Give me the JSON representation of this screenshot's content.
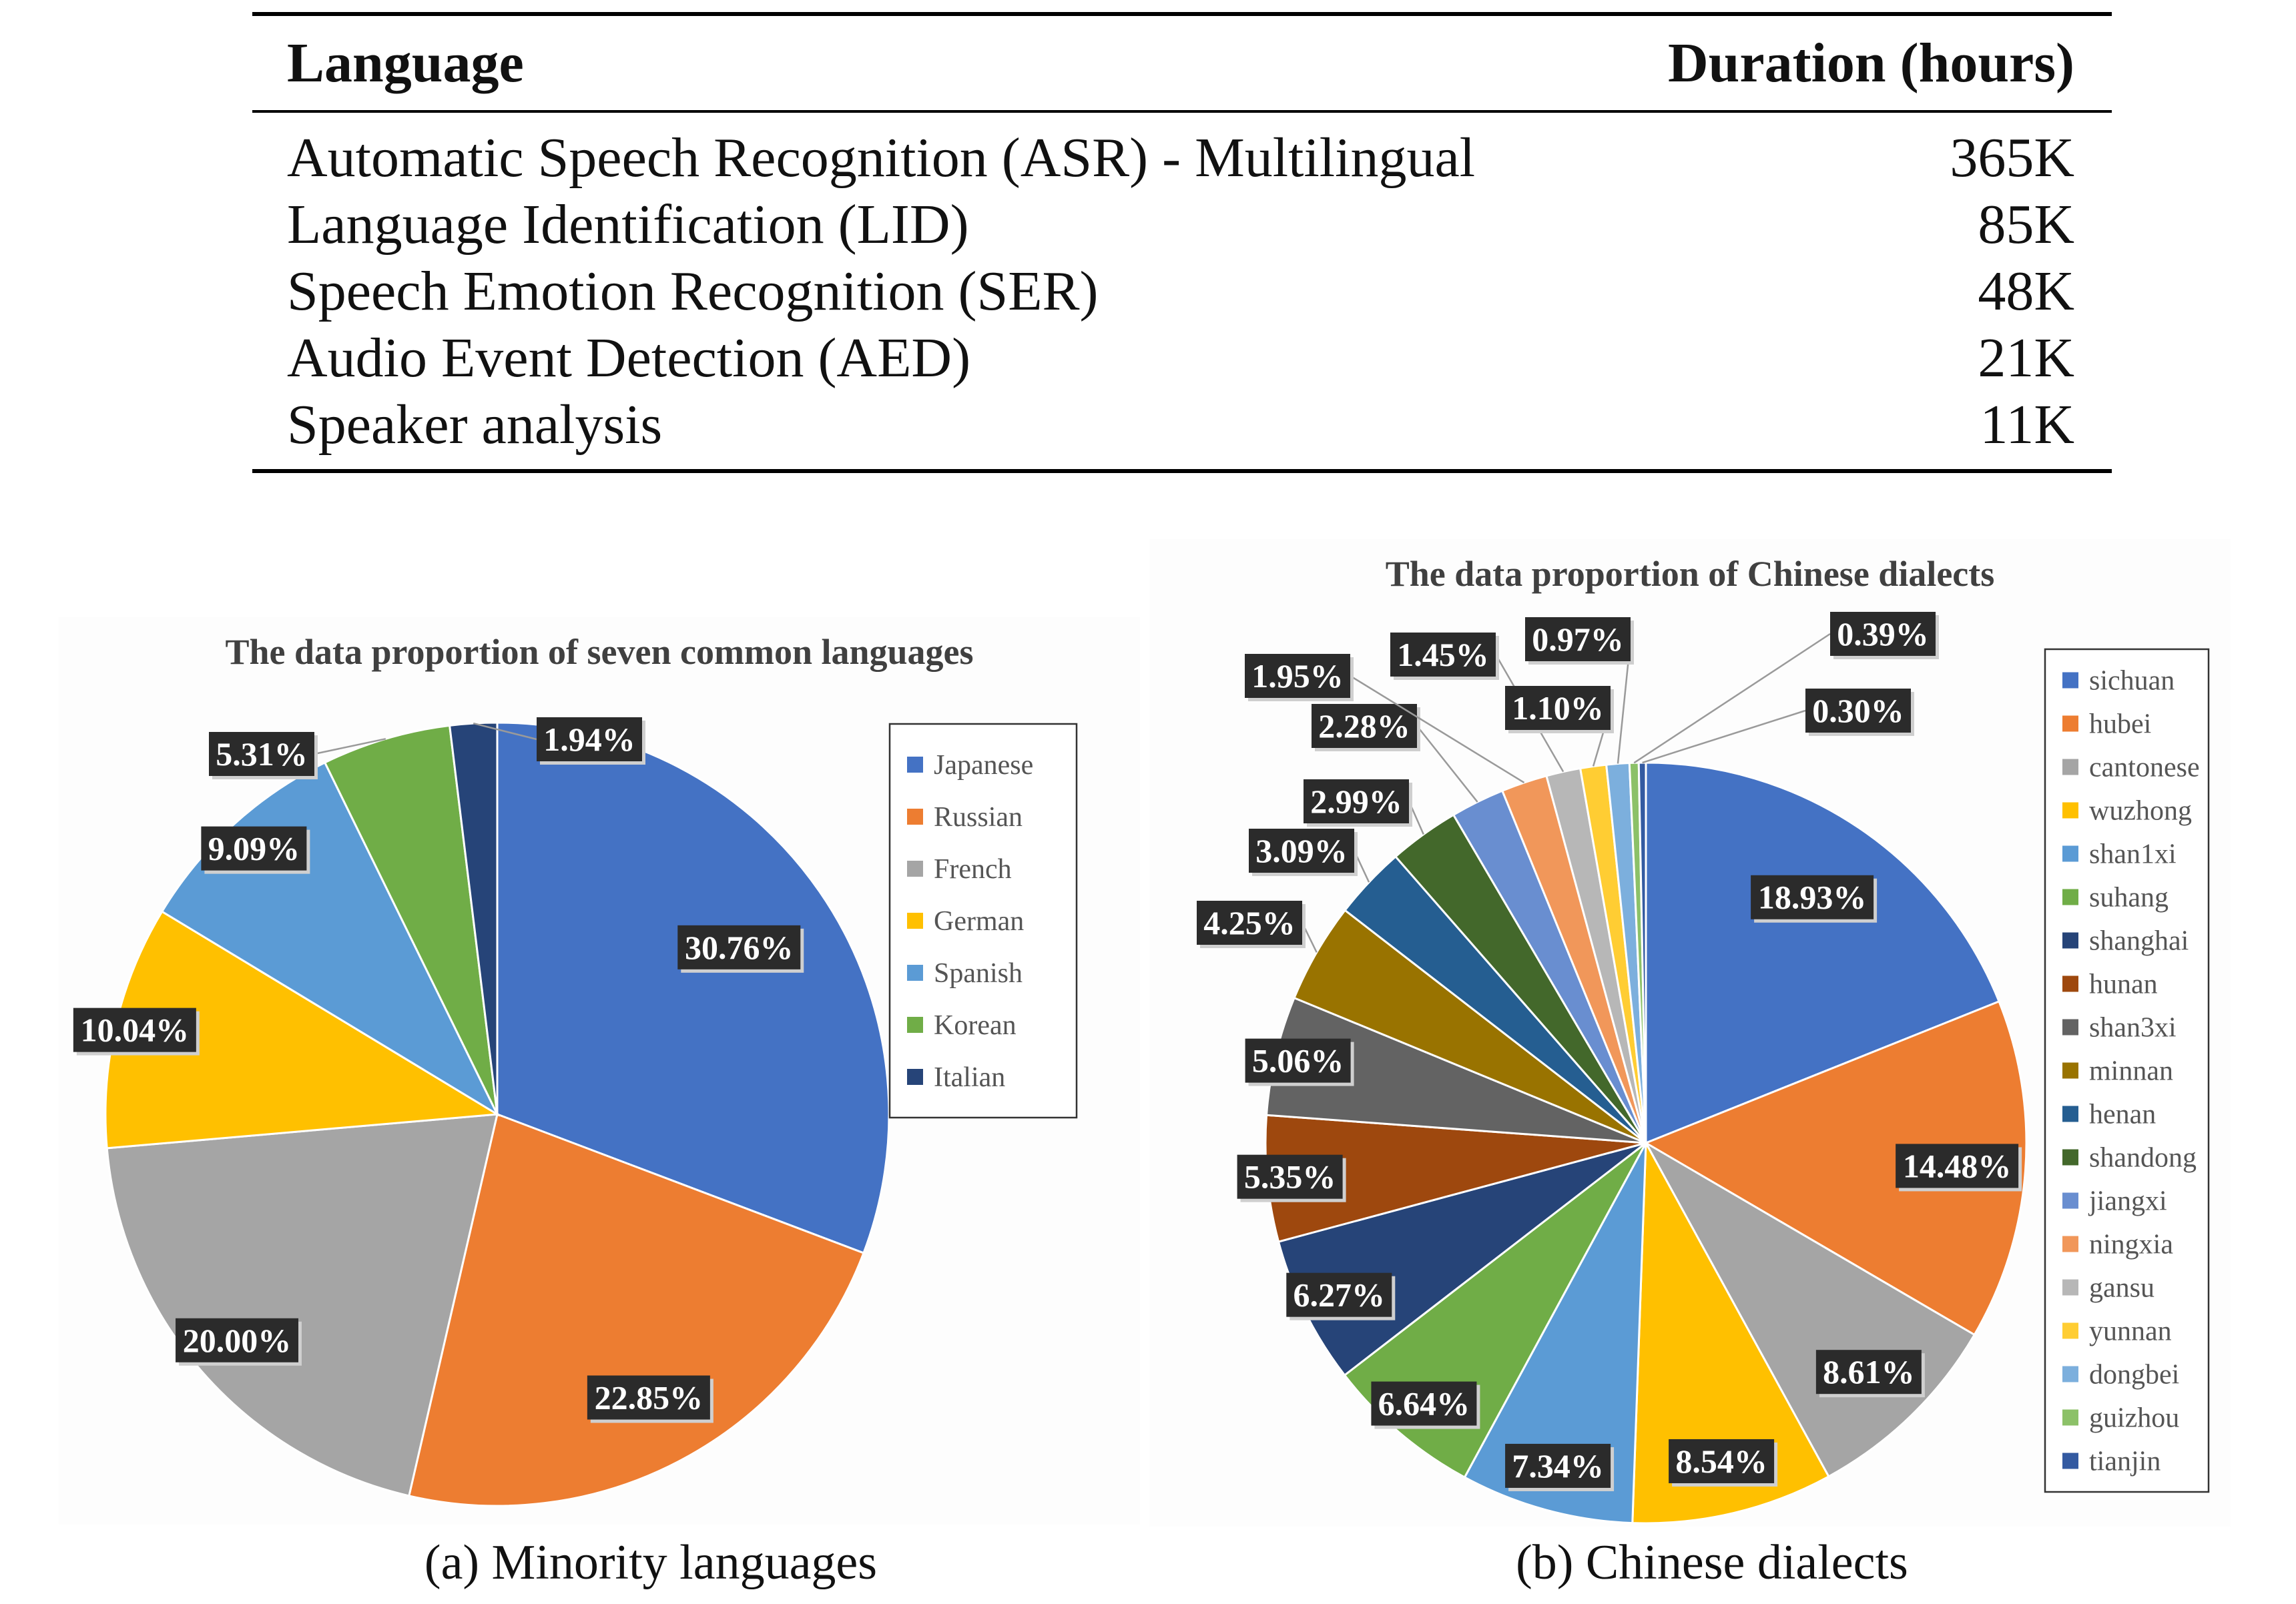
{
  "table": {
    "headers": [
      "Language",
      "Duration (hours)"
    ],
    "rows": [
      {
        "task": "Automatic Speech Recognition (ASR) - Multilingual",
        "duration": "365K"
      },
      {
        "task": "Language Identification (LID)",
        "duration": "85K"
      },
      {
        "task": "Speech Emotion Recognition (SER)",
        "duration": "48K"
      },
      {
        "task": "Audio Event Detection (AED)",
        "duration": "21K"
      },
      {
        "task": "Speaker analysis",
        "duration": "11K"
      }
    ]
  },
  "captions": {
    "a": "(a) Minority languages",
    "b": "(b) Chinese dialects"
  },
  "chart_data": [
    {
      "type": "pie",
      "title": "The data proportion of seven common languages",
      "legend_position": "right",
      "slices": [
        {
          "name": "Japanese",
          "value": 30.76,
          "label": "30.76%",
          "color": "#4472C4"
        },
        {
          "name": "Russian",
          "value": 22.85,
          "label": "22.85%",
          "color": "#ED7D31"
        },
        {
          "name": "French",
          "value": 20.0,
          "label": "20.00%",
          "color": "#A5A5A5"
        },
        {
          "name": "German",
          "value": 10.04,
          "label": "10.04%",
          "color": "#FFC000"
        },
        {
          "name": "Spanish",
          "value": 9.09,
          "label": "9.09%",
          "color": "#5B9BD5"
        },
        {
          "name": "Korean",
          "value": 5.31,
          "label": "5.31%",
          "color": "#70AD47"
        },
        {
          "name": "Italian",
          "value": 1.94,
          "label": "1.94%",
          "color": "#264478"
        }
      ]
    },
    {
      "type": "pie",
      "title": "The data proportion of Chinese dialects",
      "legend_position": "right",
      "slices": [
        {
          "name": "sichuan",
          "value": 18.93,
          "label": "18.93%",
          "color": "#4472C4"
        },
        {
          "name": "hubei",
          "value": 14.48,
          "label": "14.48%",
          "color": "#ED7D31"
        },
        {
          "name": "cantonese",
          "value": 8.61,
          "label": "8.61%",
          "color": "#A5A5A5"
        },
        {
          "name": "wuzhong",
          "value": 8.54,
          "label": "8.54%",
          "color": "#FFC000"
        },
        {
          "name": "shan1xi",
          "value": 7.34,
          "label": "7.34%",
          "color": "#5B9BD5"
        },
        {
          "name": "suhang",
          "value": 6.64,
          "label": "6.64%",
          "color": "#70AD47"
        },
        {
          "name": "shanghai",
          "value": 6.27,
          "label": "6.27%",
          "color": "#264478"
        },
        {
          "name": "hunan",
          "value": 5.35,
          "label": "5.35%",
          "color": "#9E480E"
        },
        {
          "name": "shan3xi",
          "value": 5.06,
          "label": "5.06%",
          "color": "#636363"
        },
        {
          "name": "minnan",
          "value": 4.25,
          "label": "4.25%",
          "color": "#997300"
        },
        {
          "name": "henan",
          "value": 3.09,
          "label": "3.09%",
          "color": "#255E91"
        },
        {
          "name": "shandong",
          "value": 2.99,
          "label": "2.99%",
          "color": "#43682B"
        },
        {
          "name": "jiangxi",
          "value": 2.28,
          "label": "2.28%",
          "color": "#698ED0"
        },
        {
          "name": "ningxia",
          "value": 1.95,
          "label": "1.95%",
          "color": "#F1975A"
        },
        {
          "name": "gansu",
          "value": 1.45,
          "label": "1.45%",
          "color": "#B7B7B7"
        },
        {
          "name": "yunnan",
          "value": 1.1,
          "label": "1.10%",
          "color": "#FFCD33"
        },
        {
          "name": "dongbei",
          "value": 0.97,
          "label": "0.97%",
          "color": "#7CAFDD"
        },
        {
          "name": "guizhou",
          "value": 0.39,
          "label": "0.39%",
          "color": "#8CC168"
        },
        {
          "name": "tianjin",
          "value": 0.3,
          "label": "0.30%",
          "color": "#335AA1"
        }
      ]
    }
  ]
}
